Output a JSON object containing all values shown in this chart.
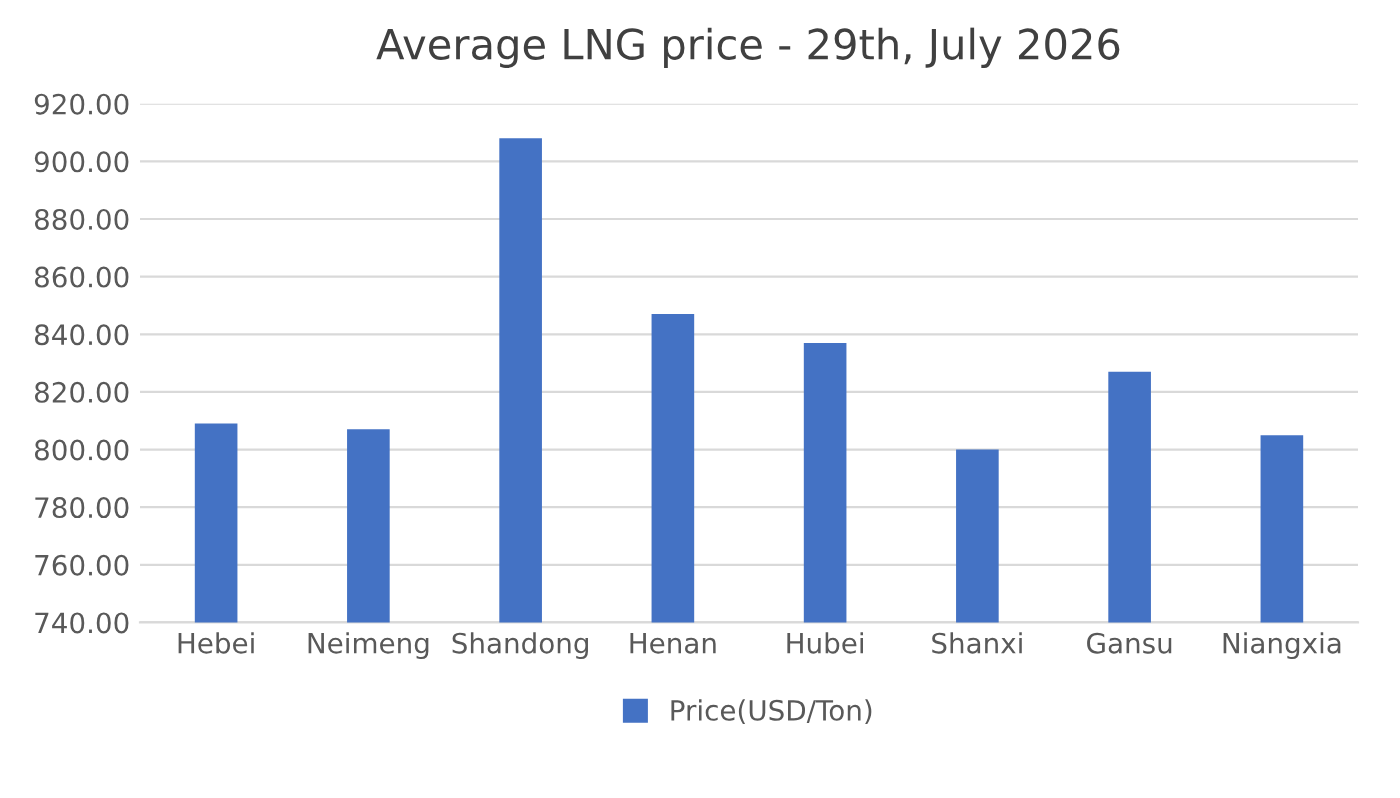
{
  "chart_data": {
    "type": "bar",
    "title": "Average LNG price - 29th, July 2026",
    "categories": [
      "Hebei",
      "Neimeng",
      "Shandong",
      "Henan",
      "Hubei",
      "Shanxi",
      "Gansu",
      "Niangxia"
    ],
    "series": [
      {
        "name": "Price(USD/Ton)",
        "color": "#4472c4",
        "values": [
          809,
          807,
          908,
          847,
          837,
          800,
          827,
          805
        ]
      }
    ],
    "ylim": [
      740,
      920
    ],
    "yticks": [
      {
        "value": 740,
        "label": "740.00"
      },
      {
        "value": 760,
        "label": "760.00"
      },
      {
        "value": 780,
        "label": "780.00"
      },
      {
        "value": 800,
        "label": "800.00"
      },
      {
        "value": 820,
        "label": "820.00"
      },
      {
        "value": 840,
        "label": "840.00"
      },
      {
        "value": 860,
        "label": "860.00"
      },
      {
        "value": 880,
        "label": "880.00"
      },
      {
        "value": 900,
        "label": "900.00"
      },
      {
        "value": 920,
        "label": "920.00"
      }
    ],
    "grid": "y",
    "legend": "bottom"
  }
}
